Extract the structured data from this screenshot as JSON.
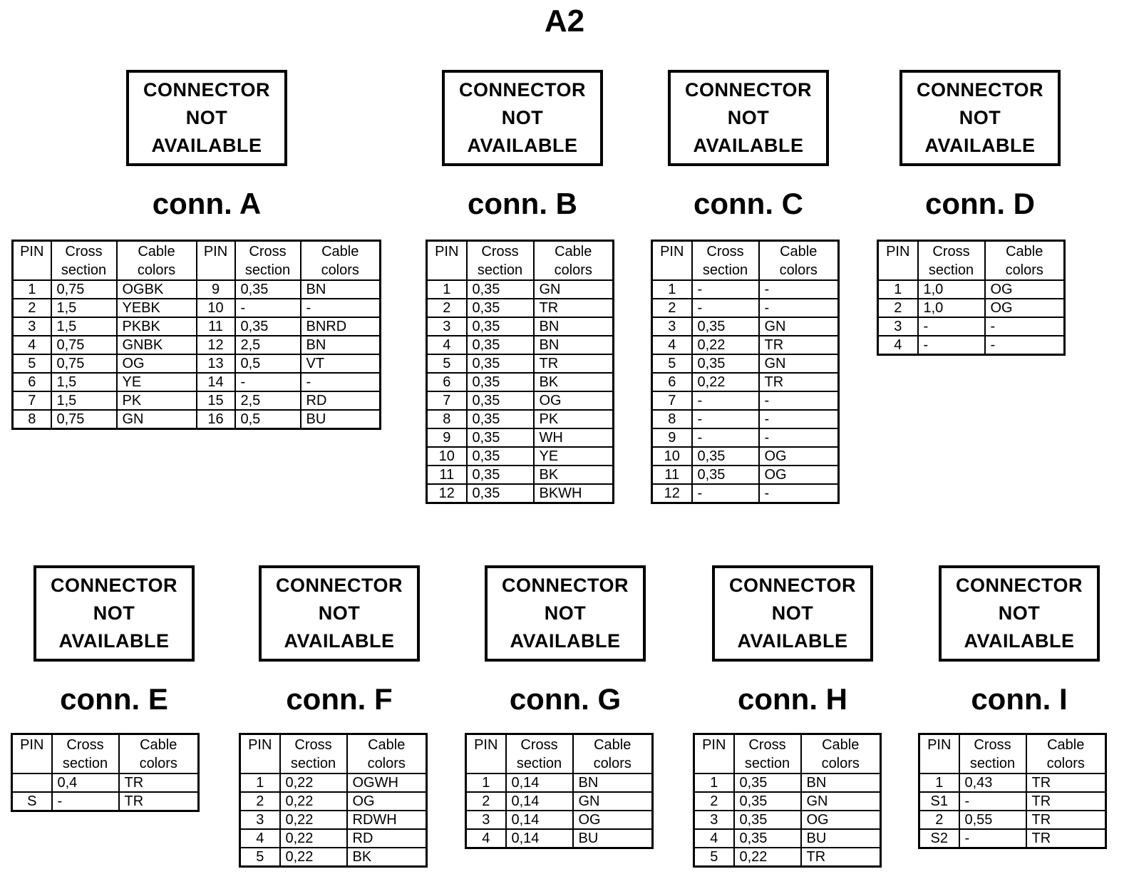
{
  "title": "A2",
  "colors": {
    "ink": "#000000",
    "paper": "#ffffff"
  },
  "not_available": {
    "lines": [
      "CONNECTOR",
      "NOT",
      "AVAILABLE"
    ]
  },
  "headers": {
    "pin": "PIN",
    "cross": "Cross section",
    "cable": "Cable colors"
  },
  "connectors": [
    {
      "id": "A",
      "label": "conn. A",
      "double": true,
      "rows": [
        [
          "1",
          "0,75",
          "OGBK",
          "9",
          "0,35",
          "BN"
        ],
        [
          "2",
          "1,5",
          "YEBK",
          "10",
          "-",
          "-"
        ],
        [
          "3",
          "1,5",
          "PKBK",
          "11",
          "0,35",
          "BNRD"
        ],
        [
          "4",
          "0,75",
          "GNBK",
          "12",
          "2,5",
          "BN"
        ],
        [
          "5",
          "0,75",
          "OG",
          "13",
          "0,5",
          "VT"
        ],
        [
          "6",
          "1,5",
          "YE",
          "14",
          "-",
          "-"
        ],
        [
          "7",
          "1,5",
          "PK",
          "15",
          "2,5",
          "RD"
        ],
        [
          "8",
          "0,75",
          "GN",
          "16",
          "0,5",
          "BU"
        ]
      ]
    },
    {
      "id": "B",
      "label": "conn. B",
      "double": false,
      "rows": [
        [
          "1",
          "0,35",
          "GN"
        ],
        [
          "2",
          "0,35",
          "TR"
        ],
        [
          "3",
          "0,35",
          "BN"
        ],
        [
          "4",
          "0,35",
          "BN"
        ],
        [
          "5",
          "0,35",
          "TR"
        ],
        [
          "6",
          "0,35",
          "BK"
        ],
        [
          "7",
          "0,35",
          "OG"
        ],
        [
          "8",
          "0,35",
          "PK"
        ],
        [
          "9",
          "0,35",
          "WH"
        ],
        [
          "10",
          "0,35",
          "YE"
        ],
        [
          "11",
          "0,35",
          "BK"
        ],
        [
          "12",
          "0,35",
          "BKWH"
        ]
      ]
    },
    {
      "id": "C",
      "label": "conn. C",
      "double": false,
      "rows": [
        [
          "1",
          "-",
          "-"
        ],
        [
          "2",
          "-",
          "-"
        ],
        [
          "3",
          "0,35",
          "GN"
        ],
        [
          "4",
          "0,22",
          "TR"
        ],
        [
          "5",
          "0,35",
          "GN"
        ],
        [
          "6",
          "0,22",
          "TR"
        ],
        [
          "7",
          "-",
          "-"
        ],
        [
          "8",
          "-",
          "-"
        ],
        [
          "9",
          "-",
          "-"
        ],
        [
          "10",
          "0,35",
          "OG"
        ],
        [
          "11",
          "0,35",
          "OG"
        ],
        [
          "12",
          "-",
          "-"
        ]
      ]
    },
    {
      "id": "D",
      "label": "conn. D",
      "double": false,
      "rows": [
        [
          "1",
          "1,0",
          "OG"
        ],
        [
          "2",
          "1,0",
          "OG"
        ],
        [
          "3",
          "-",
          "-"
        ],
        [
          "4",
          "-",
          "-"
        ]
      ]
    },
    {
      "id": "E",
      "label": "conn. E",
      "double": false,
      "rows": [
        [
          "",
          "0,4",
          "TR"
        ],
        [
          "S",
          "-",
          "TR"
        ]
      ]
    },
    {
      "id": "F",
      "label": "conn. F",
      "double": false,
      "rows": [
        [
          "1",
          "0,22",
          "OGWH"
        ],
        [
          "2",
          "0,22",
          "OG"
        ],
        [
          "3",
          "0,22",
          "RDWH"
        ],
        [
          "4",
          "0,22",
          "RD"
        ],
        [
          "5",
          "0,22",
          "BK"
        ]
      ]
    },
    {
      "id": "G",
      "label": "conn. G",
      "double": false,
      "rows": [
        [
          "1",
          "0,14",
          "BN"
        ],
        [
          "2",
          "0,14",
          "GN"
        ],
        [
          "3",
          "0,14",
          "OG"
        ],
        [
          "4",
          "0,14",
          "BU"
        ]
      ]
    },
    {
      "id": "H",
      "label": "conn. H",
      "double": false,
      "rows": [
        [
          "1",
          "0,35",
          "BN"
        ],
        [
          "2",
          "0,35",
          "GN"
        ],
        [
          "3",
          "0,35",
          "OG"
        ],
        [
          "4",
          "0,35",
          "BU"
        ],
        [
          "5",
          "0,22",
          "TR"
        ]
      ]
    },
    {
      "id": "I",
      "label": "conn. I",
      "double": false,
      "rows": [
        [
          "1",
          "0,43",
          "TR"
        ],
        [
          "S1",
          "-",
          "TR"
        ],
        [
          "2",
          "0,55",
          "TR"
        ],
        [
          "S2",
          "-",
          "TR"
        ]
      ]
    }
  ]
}
